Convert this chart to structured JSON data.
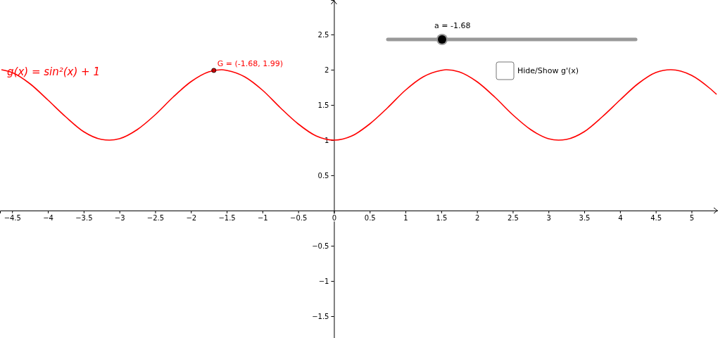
{
  "chart_data": {
    "type": "line",
    "xlim": [
      -4.67,
      5.37
    ],
    "ylim": [
      -1.81,
      2.99
    ],
    "xticks": [
      {
        "value": -4.5,
        "label": "−4.5"
      },
      {
        "value": -4,
        "label": "−4"
      },
      {
        "value": -3.5,
        "label": "−3.5"
      },
      {
        "value": -3,
        "label": "−3"
      },
      {
        "value": -2.5,
        "label": "−2.5"
      },
      {
        "value": -2,
        "label": "−2"
      },
      {
        "value": -1.5,
        "label": "−1.5"
      },
      {
        "value": -1,
        "label": "−1"
      },
      {
        "value": -0.5,
        "label": "−0.5"
      },
      {
        "value": 0,
        "label": "0"
      },
      0.5,
      1,
      1.5,
      2,
      2.5,
      3,
      3.5,
      4,
      4.5,
      5
    ],
    "yticks": [
      {
        "value": -1.5,
        "label": "−1.5"
      },
      {
        "value": -1,
        "label": "−1"
      },
      {
        "value": -0.5,
        "label": "−0.5"
      },
      0.5,
      1,
      1.5,
      2,
      2.5
    ],
    "series": [
      {
        "name": "g(x) = sin²(x) + 1",
        "color": "#ff0000",
        "marker": "none",
        "x": [
          -4.65,
          -4.5,
          -4.25,
          -4,
          -3.75,
          -3.5,
          -3.25,
          -3.14,
          -3,
          -2.75,
          -2.5,
          -2.25,
          -2,
          -1.75,
          -1.57,
          -1.5,
          -1.25,
          -1,
          -0.75,
          -0.5,
          -0.25,
          0,
          0.25,
          0.5,
          0.75,
          1,
          1.25,
          1.5,
          1.57,
          1.75,
          2,
          2.25,
          2.5,
          2.75,
          3,
          3.14,
          3.25,
          3.5,
          3.75,
          4,
          4.25,
          4.5,
          4.71,
          5,
          5.25,
          5.35
        ],
        "values": [
          2.0,
          1.96,
          1.8,
          1.57,
          1.33,
          1.12,
          1.01,
          1.0,
          1.02,
          1.15,
          1.36,
          1.61,
          1.83,
          1.97,
          2.0,
          1.99,
          1.9,
          1.71,
          1.46,
          1.23,
          1.06,
          1,
          1.06,
          1.23,
          1.46,
          1.71,
          1.9,
          1.99,
          2.0,
          1.97,
          1.83,
          1.61,
          1.36,
          1.15,
          1.02,
          1.0,
          1.01,
          1.12,
          1.33,
          1.57,
          1.8,
          1.96,
          2.0,
          1.92,
          1.74,
          1.65
        ]
      },
      {
        "type": "scatter",
        "color": "#cc0000",
        "marker": "circle",
        "x": [
          -1.68
        ],
        "values": [
          1.99
        ]
      }
    ],
    "annotations": [
      {
        "text": "G = (-1.68, 1.99)",
        "x": -1.68,
        "y": 1.99
      },
      "a = -1.68",
      "Hide/Show g'(x)"
    ]
  }
}
